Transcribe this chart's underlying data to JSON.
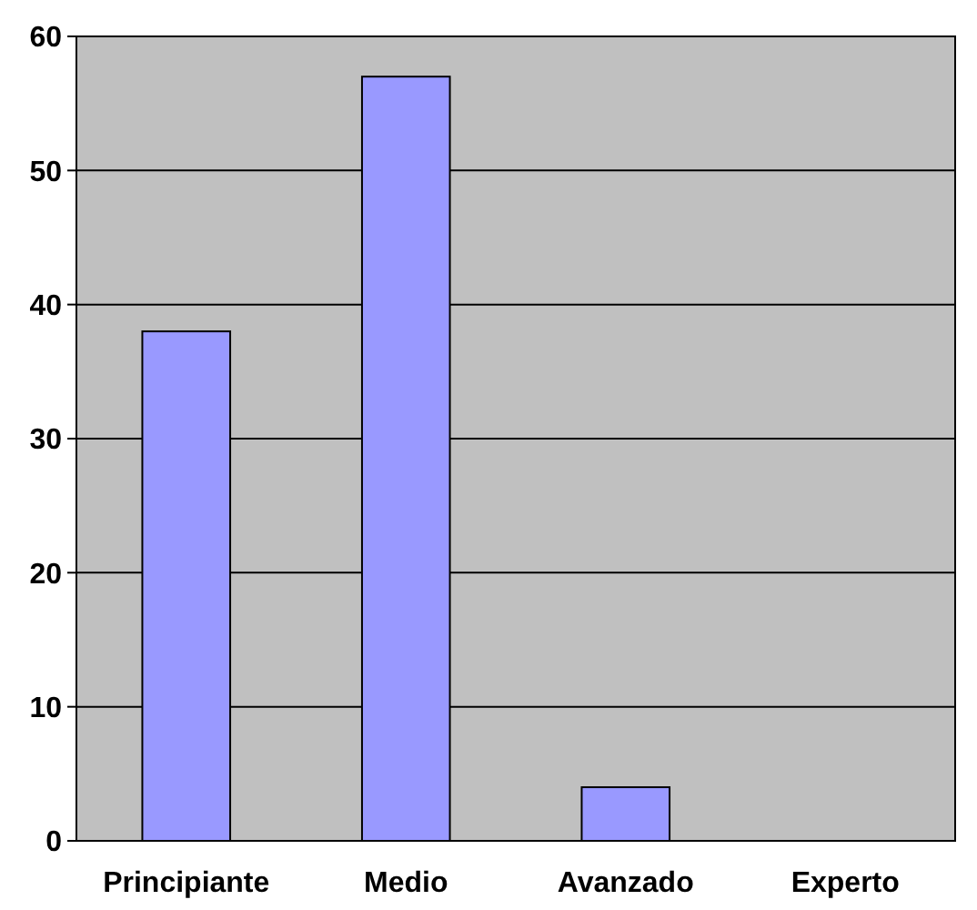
{
  "chart_data": {
    "type": "bar",
    "categories": [
      "Principiante",
      "Medio",
      "Avanzado",
      "Experto"
    ],
    "values": [
      38,
      57,
      4,
      0
    ],
    "color": "#9999ff",
    "ylim": [
      0,
      60
    ],
    "yticks": [
      0,
      10,
      20,
      30,
      40,
      50,
      60
    ],
    "grid": "y"
  }
}
